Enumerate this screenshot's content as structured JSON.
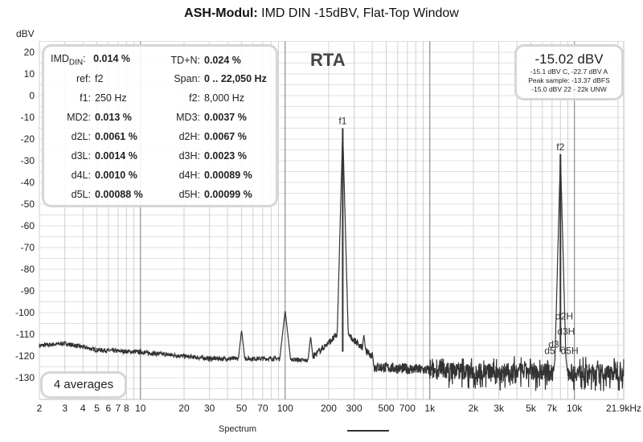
{
  "title": {
    "bold": "ASH-Modul:",
    "rest": " IMD DIN -15dBV, Flat-Top Window"
  },
  "rta_label": "RTA",
  "info": {
    "imd_label": "IMD",
    "imd_sub": "DIN",
    "imd_colon": ":",
    "imd_value": "0.014 %",
    "rows": [
      {
        "l1": "ref:",
        "v1": "f2",
        "b1": false,
        "l2": "Span:",
        "v2": "0 .. 22,050 Hz",
        "b2": true
      },
      {
        "l1": "f1:",
        "v1": "250 Hz",
        "b1": false,
        "l2": "f2:",
        "v2": "8,000 Hz",
        "b2": false
      },
      {
        "l1": "MD2:",
        "v1": "0.013 %",
        "b1": true,
        "l2": "MD3:",
        "v2": "0.0037 %",
        "b2": true
      },
      {
        "l1": "d2L:",
        "v1": "0.0061 %",
        "b1": true,
        "l2": "d2H:",
        "v2": "0.0067 %",
        "b2": true
      },
      {
        "l1": "d3L:",
        "v1": "0.0014 %",
        "b1": true,
        "l2": "d3H:",
        "v2": "0.0023 %",
        "b2": true
      },
      {
        "l1": "d4L:",
        "v1": "0.0010 %",
        "b1": true,
        "l2": "d4H:",
        "v2": "0.00089 %",
        "b2": true
      },
      {
        "l1": "d5L:",
        "v1": "0.00088 %",
        "b1": true,
        "l2": "d5H:",
        "v2": "0.00099 %",
        "b2": true
      }
    ],
    "tdn_label": "TD+N:",
    "tdn_value": "0.024 %"
  },
  "level": {
    "main": "-15.02 dBV",
    "line1": "-15.1 dBV C, -22.7 dBV A",
    "line2": "Peak sample: -13.37 dBFS",
    "line3": "-15.0 dBV 22 - 22k UNW"
  },
  "averages": "4 averages",
  "legend": "Spectrum",
  "chart_data": {
    "type": "line",
    "title": "ASH-Modul: IMD DIN -15dBV, Flat-Top Window",
    "ylabel": "dBV",
    "xlabel": "",
    "xscale": "log",
    "xlim": [
      2,
      21900
    ],
    "ylim": [
      -140,
      25
    ],
    "yticks": [
      20,
      10,
      0,
      -10,
      -20,
      -30,
      -40,
      -50,
      -60,
      -70,
      -80,
      -90,
      -100,
      -110,
      -120,
      -130
    ],
    "xticks": [
      {
        "v": 2,
        "t": "2"
      },
      {
        "v": 3,
        "t": "3"
      },
      {
        "v": 4,
        "t": "4"
      },
      {
        "v": 5,
        "t": "5"
      },
      {
        "v": 6,
        "t": "6"
      },
      {
        "v": 7,
        "t": "7"
      },
      {
        "v": 8,
        "t": "8"
      },
      {
        "v": 10,
        "t": "10"
      },
      {
        "v": 20,
        "t": "20"
      },
      {
        "v": 30,
        "t": "30"
      },
      {
        "v": 50,
        "t": "50"
      },
      {
        "v": 70,
        "t": "70"
      },
      {
        "v": 100,
        "t": "100"
      },
      {
        "v": 200,
        "t": "200"
      },
      {
        "v": 300,
        "t": "300"
      },
      {
        "v": 500,
        "t": "500"
      },
      {
        "v": 700,
        "t": "700"
      },
      {
        "v": 1000,
        "t": "1k"
      },
      {
        "v": 2000,
        "t": "2k"
      },
      {
        "v": 3000,
        "t": "3k"
      },
      {
        "v": 5000,
        "t": "5k"
      },
      {
        "v": 7000,
        "t": "7k"
      },
      {
        "v": 10000,
        "t": "10k"
      },
      {
        "v": 21900,
        "t": "21.9kHz"
      }
    ],
    "series": [
      {
        "name": "Spectrum",
        "color": "#333333",
        "baseline": [
          [
            2,
            -115
          ],
          [
            3,
            -114
          ],
          [
            5,
            -117
          ],
          [
            10,
            -118
          ],
          [
            30,
            -121
          ],
          [
            100,
            -121
          ],
          [
            300,
            -124
          ],
          [
            1000,
            -126
          ],
          [
            21900,
            -127
          ]
        ],
        "peaks": [
          [
            50,
            -108
          ],
          [
            100,
            -99
          ],
          [
            150,
            -111
          ],
          [
            250,
            -15
          ],
          [
            350,
            -110
          ],
          [
            400,
            -118
          ],
          [
            8000,
            -27
          ],
          [
            7750,
            -107
          ],
          [
            8250,
            -107
          ],
          [
            7500,
            -117
          ],
          [
            8500,
            -114
          ]
        ]
      }
    ],
    "markers": [
      {
        "label": "f1",
        "x": 250,
        "y": -15
      },
      {
        "label": "f2",
        "x": 8000,
        "y": -27
      },
      {
        "label": "d2H",
        "x": 8500,
        "y": -105
      },
      {
        "label": "d3H",
        "x": 8750,
        "y": -112
      },
      {
        "label": "d3L",
        "x": 7500,
        "y": -118
      },
      {
        "label": "d5",
        "x": 6750,
        "y": -121
      },
      {
        "label": "d5H",
        "x": 9250,
        "y": -121
      }
    ]
  }
}
